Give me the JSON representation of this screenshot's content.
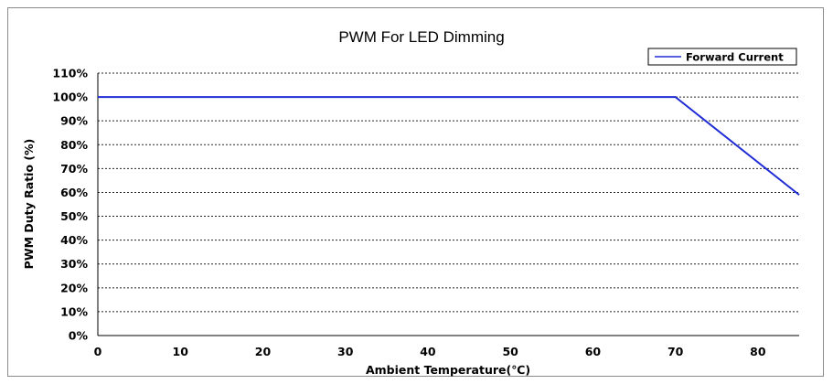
{
  "chart_data": {
    "type": "line",
    "title": "PWM For LED Dimming",
    "xlabel": "Ambient Temperature(℃)",
    "ylabel": "PWM Duty Ratio (%)",
    "xlim": [
      0,
      85
    ],
    "ylim": [
      0,
      110
    ],
    "x_ticks": [
      "0",
      "10",
      "20",
      "30",
      "40",
      "50",
      "60",
      "70",
      "80"
    ],
    "y_ticks": [
      "0%",
      "10%",
      "20%",
      "30%",
      "40%",
      "50%",
      "60%",
      "70%",
      "80%",
      "90%",
      "100%",
      "110%"
    ],
    "grid": "horizontal dashed",
    "legend_position": "top-right",
    "series": [
      {
        "name": "Forward Current",
        "color": "#1f2bd6",
        "x": [
          0,
          70,
          85
        ],
        "y": [
          100,
          100,
          59
        ]
      }
    ]
  }
}
